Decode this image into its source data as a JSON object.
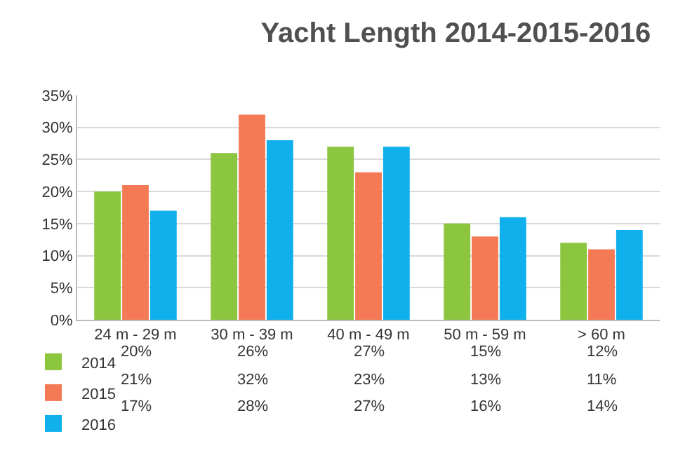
{
  "chart_data": {
    "type": "bar",
    "title": "Yacht Length 2014-2015-2016",
    "categories": [
      "24 m - 29 m",
      "30 m - 39 m",
      "40 m - 49 m",
      "50 m - 59 m",
      "> 60 m"
    ],
    "series": [
      {
        "name": "2014",
        "color": "#8cc63e",
        "values": [
          20,
          26,
          27,
          15,
          12
        ],
        "value_labels": [
          "20%",
          "26%",
          "27%",
          "15%",
          "12%"
        ]
      },
      {
        "name": "2015",
        "color": "#f47a55",
        "values": [
          21,
          32,
          23,
          13,
          11
        ],
        "value_labels": [
          "21%",
          "32%",
          "23%",
          "13%",
          "11%"
        ]
      },
      {
        "name": "2016",
        "color": "#0fb0ec",
        "values": [
          17,
          28,
          27,
          16,
          14
        ],
        "value_labels": [
          "17%",
          "28%",
          "27%",
          "16%",
          "14%"
        ]
      }
    ],
    "ylim": [
      0,
      35
    ],
    "yticks": [
      {
        "value": 0,
        "label": "0%"
      },
      {
        "value": 5,
        "label": "5%"
      },
      {
        "value": 10,
        "label": "10%"
      },
      {
        "value": 15,
        "label": "15%"
      },
      {
        "value": 20,
        "label": "20%"
      },
      {
        "value": 25,
        "label": "25%"
      },
      {
        "value": 30,
        "label": "30%"
      },
      {
        "value": 35,
        "label": "35%"
      }
    ],
    "grid": "y",
    "legend": "bottom left"
  }
}
